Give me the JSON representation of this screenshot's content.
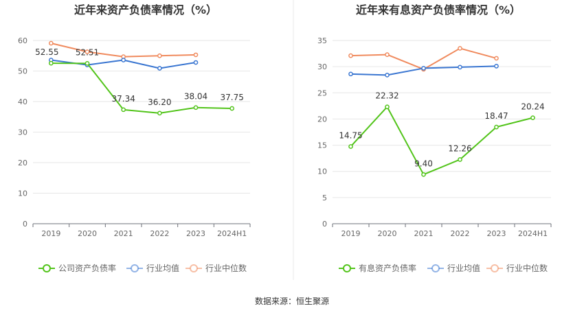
{
  "source": "数据来源：恒生聚源",
  "chart_data": [
    {
      "type": "line",
      "title": "近年来资产负债率情况（%）",
      "categories": [
        "2019",
        "2020",
        "2021",
        "2022",
        "2023",
        "2024H1"
      ],
      "ylim": [
        0,
        60
      ],
      "yticks": [
        0,
        10,
        20,
        30,
        40,
        50,
        60
      ],
      "grid": true,
      "legend_position": "bottom",
      "series": [
        {
          "name": "公司资产负债率",
          "color": "#52c41a",
          "values": [
            52.55,
            52.51,
            37.34,
            36.2,
            38.04,
            37.75
          ],
          "labels": [
            "52.55",
            "52.51",
            "37.34",
            "36.20",
            "38.04",
            "37.75"
          ]
        },
        {
          "name": "行业均值",
          "color": "#3a76d1",
          "values": [
            53.6,
            52.0,
            53.6,
            50.9,
            52.8,
            null
          ]
        },
        {
          "name": "行业中位数",
          "color": "#f08a5d",
          "values": [
            59.1,
            56.3,
            54.7,
            55.0,
            55.3,
            null
          ]
        }
      ]
    },
    {
      "type": "line",
      "title": "近年来有息资产负债率情况（%）",
      "categories": [
        "2019",
        "2020",
        "2021",
        "2022",
        "2023",
        "2024H1"
      ],
      "ylim": [
        0,
        35
      ],
      "yticks": [
        0,
        5,
        10,
        15,
        20,
        25,
        30,
        35
      ],
      "grid": true,
      "legend_position": "bottom",
      "series": [
        {
          "name": "有息资产负债率",
          "color": "#52c41a",
          "values": [
            14.75,
            22.32,
            9.4,
            12.26,
            18.47,
            20.24
          ],
          "labels": [
            "14.75",
            "22.32",
            "9.40",
            "12.26",
            "18.47",
            "20.24"
          ]
        },
        {
          "name": "行业均值",
          "color": "#3a76d1",
          "values": [
            28.6,
            28.4,
            29.7,
            29.9,
            30.1,
            null
          ]
        },
        {
          "name": "行业中位数",
          "color": "#f08a5d",
          "values": [
            32.1,
            32.3,
            29.5,
            33.5,
            31.6,
            null
          ]
        }
      ]
    }
  ]
}
